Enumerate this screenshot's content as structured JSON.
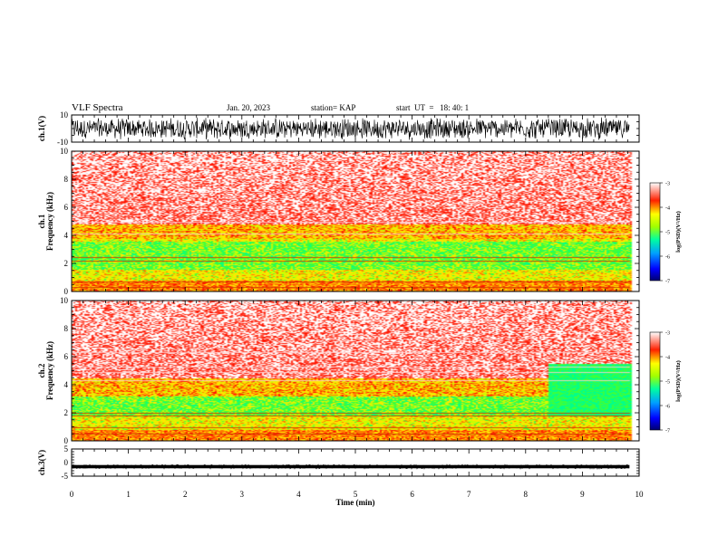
{
  "header": {
    "title": "VLF Spectra",
    "date": "Jan. 20, 2023",
    "station": "station= KAP",
    "start": "start  UT  =   18: 40: 1"
  },
  "chart_data": [
    {
      "type": "line",
      "panel": "ch1-waveform",
      "ylabel": "ch.1(V)",
      "ylim": [
        -10,
        10
      ],
      "yticks": [
        "10",
        "-10"
      ],
      "xlim": [
        0,
        10
      ],
      "data_extent_min": 9.83,
      "description_of_signal": "dense noise band",
      "band_min": -8.5,
      "band_max": 8.5
    },
    {
      "type": "heatmap",
      "panel": "ch1-spectrogram",
      "ylabel": "ch.1\nFrequency  (kHz)",
      "ylim": [
        0,
        10
      ],
      "yticks": [
        "0",
        "2",
        "4",
        "6",
        "8",
        "10"
      ],
      "xlim": [
        0,
        10
      ],
      "colorbar": {
        "label": "log(PSD)(V²/Hz)",
        "range": [
          -7,
          -3
        ],
        "ticks": [
          "-3",
          "-4",
          "-5",
          "-6",
          "-7"
        ]
      },
      "features": {
        "red_above_khz": 4.8,
        "yellow_band_khz": [
          3.8,
          4.8
        ],
        "green_band_khz": [
          1.6,
          3.6
        ],
        "narrowband_lines_khz": [
          0.3,
          0.7,
          2.2,
          2.45,
          4.1,
          5.0
        ]
      }
    },
    {
      "type": "heatmap",
      "panel": "ch2-spectrogram",
      "ylabel": "ch.2\nFrequency  (kHz)",
      "ylim": [
        0,
        10
      ],
      "yticks": [
        "0",
        "2",
        "4",
        "6",
        "8",
        "10"
      ],
      "xlim": [
        0,
        10
      ],
      "colorbar": {
        "label": "log(PSD)(V²/Hz)",
        "range": [
          -7,
          -3
        ],
        "ticks": [
          "-3",
          "-4",
          "-5",
          "-6",
          "-7"
        ]
      },
      "features": {
        "red_above_khz": 4.5,
        "yellow_band_khz": [
          3.2,
          4.5
        ],
        "green_band_khz": [
          1.8,
          3.2
        ],
        "narrowband_lines_khz": [
          0.5,
          1.0,
          1.8,
          2.0,
          4.3,
          4.9,
          5.3,
          6.3
        ]
      }
    },
    {
      "type": "line",
      "panel": "ch3-waveform",
      "ylabel": "ch.3(V)",
      "ylim": [
        -5,
        5
      ],
      "yticks": [
        "5",
        "0",
        "-5"
      ],
      "xlim": [
        0,
        10
      ],
      "xlabel": "Time  (min)",
      "xticks": [
        "0",
        "1",
        "2",
        "3",
        "4",
        "5",
        "6",
        "7",
        "8",
        "9",
        "10"
      ],
      "band_center": -1.5,
      "band_half_width": 0.6
    }
  ]
}
